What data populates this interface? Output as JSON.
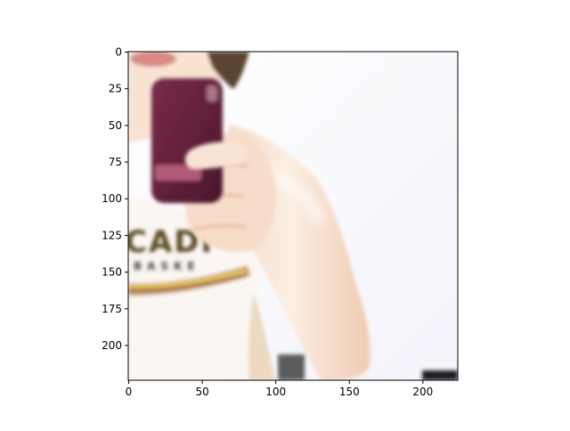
{
  "figure": {
    "x_ticks": [
      "0",
      "50",
      "100",
      "150",
      "200"
    ],
    "y_ticks": [
      "0",
      "25",
      "50",
      "75",
      "100",
      "125",
      "150",
      "175",
      "200"
    ],
    "x_tick_values": [
      0,
      50,
      100,
      150,
      200
    ],
    "y_tick_values": [
      0,
      25,
      50,
      75,
      100,
      125,
      150,
      175,
      200
    ],
    "x_range": [
      0,
      224
    ],
    "y_range": [
      224,
      0
    ],
    "image_text": [
      "CADI",
      "BASKE"
    ],
    "image_description_colors": {
      "phone_case": "#6b2540",
      "phone_stripe": "#b05a78",
      "skin": "#f6ddcb",
      "hair": "#5a4433",
      "background": "#fcfcfe",
      "shirt_stripe": "#f2d23a"
    }
  }
}
